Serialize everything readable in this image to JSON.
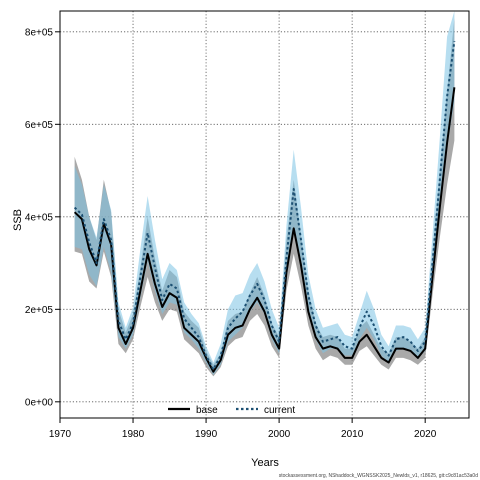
{
  "chart_data": {
    "type": "line",
    "xlabel": "Years",
    "ylabel": "SSB",
    "xlim": [
      1970,
      2026
    ],
    "ylim": [
      -35000,
      845000
    ],
    "x_ticks": [
      1970,
      1980,
      1990,
      2000,
      2010,
      2020
    ],
    "y_ticks": [
      {
        "value": 0,
        "label": "0e+00"
      },
      {
        "value": 200000,
        "label": "2e+05"
      },
      {
        "value": 400000,
        "label": "4e+05"
      },
      {
        "value": 600000,
        "label": "6e+05"
      },
      {
        "value": 800000,
        "label": "8e+05"
      }
    ],
    "grid": true,
    "legend_position": "bottom-center",
    "footnote": "stockassessment.org, NShaddock_WGNSSK2025_Newlds_v1, r18625, git:c9c81ac53a0d",
    "x": [
      1972,
      1973,
      1974,
      1975,
      1976,
      1977,
      1978,
      1979,
      1980,
      1981,
      1982,
      1983,
      1984,
      1985,
      1986,
      1987,
      1988,
      1989,
      1990,
      1991,
      1992,
      1993,
      1994,
      1995,
      1996,
      1997,
      1998,
      1999,
      2000,
      2001,
      2002,
      2003,
      2004,
      2005,
      2006,
      2007,
      2008,
      2009,
      2010,
      2011,
      2012,
      2013,
      2014,
      2015,
      2016,
      2017,
      2018,
      2019,
      2020,
      2021,
      2022,
      2023,
      2024
    ],
    "series": [
      {
        "name": "base",
        "color": "#000000",
        "band_color": "#8c8c8c",
        "line_style": "solid",
        "values": [
          410000,
          395000,
          330000,
          295000,
          385000,
          340000,
          160000,
          125000,
          160000,
          240000,
          320000,
          255000,
          205000,
          235000,
          225000,
          160000,
          145000,
          130000,
          95000,
          65000,
          90000,
          145000,
          160000,
          165000,
          200000,
          225000,
          195000,
          145000,
          115000,
          280000,
          375000,
          295000,
          195000,
          140000,
          115000,
          120000,
          115000,
          95000,
          95000,
          130000,
          145000,
          120000,
          95000,
          85000,
          115000,
          115000,
          110000,
          95000,
          115000,
          270000,
          420000,
          560000,
          680000
        ]
      },
      {
        "name": "current",
        "color": "#1b4f72",
        "band_color": "#7cc3e3",
        "line_style": "dashed",
        "values": [
          420000,
          405000,
          345000,
          300000,
          395000,
          350000,
          175000,
          135000,
          170000,
          270000,
          365000,
          290000,
          220000,
          255000,
          245000,
          180000,
          160000,
          140000,
          100000,
          70000,
          100000,
          160000,
          180000,
          195000,
          230000,
          255000,
          220000,
          165000,
          130000,
          310000,
          460000,
          350000,
          230000,
          165000,
          130000,
          135000,
          140000,
          120000,
          115000,
          160000,
          195000,
          165000,
          120000,
          100000,
          135000,
          140000,
          130000,
          110000,
          130000,
          300000,
          480000,
          660000,
          780000
        ]
      }
    ],
    "band_lower_base": [
      325000,
      320000,
      260000,
      245000,
      325000,
      270000,
      125000,
      105000,
      135000,
      205000,
      270000,
      215000,
      175000,
      200000,
      195000,
      135000,
      120000,
      105000,
      75000,
      55000,
      75000,
      120000,
      135000,
      140000,
      175000,
      190000,
      165000,
      120000,
      95000,
      240000,
      320000,
      250000,
      165000,
      115000,
      90000,
      100000,
      95000,
      80000,
      80000,
      110000,
      120000,
      100000,
      80000,
      70000,
      95000,
      95000,
      90000,
      80000,
      95000,
      230000,
      355000,
      470000,
      565000
    ],
    "band_upper_base": [
      530000,
      480000,
      400000,
      350000,
      480000,
      410000,
      200000,
      150000,
      190000,
      290000,
      400000,
      310000,
      240000,
      285000,
      270000,
      195000,
      175000,
      160000,
      110000,
      80000,
      105000,
      175000,
      190000,
      195000,
      235000,
      270000,
      230000,
      170000,
      140000,
      350000,
      480000,
      360000,
      240000,
      170000,
      140000,
      145000,
      140000,
      115000,
      115000,
      160000,
      175000,
      145000,
      115000,
      105000,
      140000,
      140000,
      130000,
      115000,
      140000,
      320000,
      500000,
      670000,
      830000
    ],
    "band_lower_current": [
      335000,
      330000,
      275000,
      250000,
      335000,
      280000,
      140000,
      115000,
      145000,
      225000,
      305000,
      240000,
      190000,
      215000,
      210000,
      150000,
      135000,
      115000,
      85000,
      58000,
      80000,
      130000,
      145000,
      160000,
      195000,
      215000,
      190000,
      135000,
      105000,
      265000,
      380000,
      295000,
      195000,
      135000,
      105000,
      115000,
      115000,
      100000,
      100000,
      135000,
      160000,
      135000,
      100000,
      85000,
      110000,
      115000,
      110000,
      95000,
      110000,
      255000,
      405000,
      550000,
      650000
    ],
    "band_upper_current": [
      510000,
      470000,
      400000,
      355000,
      470000,
      415000,
      215000,
      160000,
      205000,
      330000,
      445000,
      350000,
      265000,
      300000,
      285000,
      215000,
      190000,
      170000,
      120000,
      85000,
      125000,
      200000,
      230000,
      235000,
      275000,
      300000,
      260000,
      200000,
      160000,
      380000,
      545000,
      420000,
      275000,
      200000,
      160000,
      165000,
      170000,
      145000,
      140000,
      190000,
      240000,
      200000,
      145000,
      120000,
      165000,
      165000,
      160000,
      135000,
      160000,
      360000,
      570000,
      790000,
      845000
    ]
  }
}
